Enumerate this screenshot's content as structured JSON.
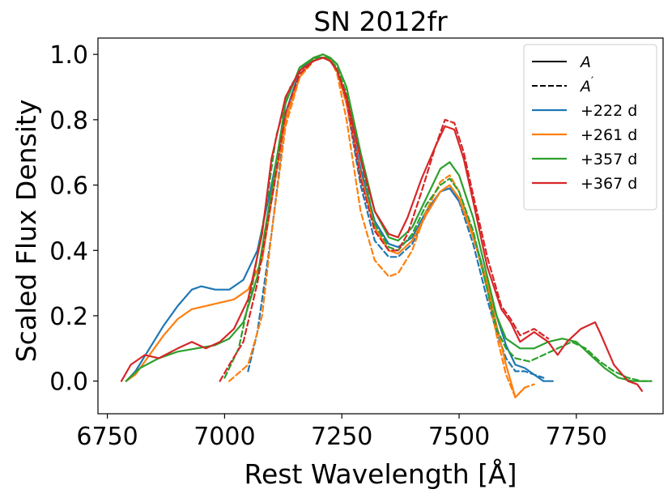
{
  "chart_data": {
    "type": "line",
    "title": "SN 2012fr",
    "xlabel": "Rest Wavelength [Å]",
    "ylabel": "Scaled Flux Density",
    "xlim": [
      6730,
      7935
    ],
    "ylim": [
      -0.1,
      1.05
    ],
    "xticks": [
      6750,
      7000,
      7250,
      7500,
      7750
    ],
    "yticks": [
      0.0,
      0.2,
      0.4,
      0.6,
      0.8,
      1.0
    ],
    "xtick_labels": [
      "6750",
      "7000",
      "7250",
      "7500",
      "7750"
    ],
    "ytick_labels": [
      "0.0",
      "0.2",
      "0.4",
      "0.6",
      "0.8",
      "1.0"
    ],
    "legend_position": "top-right",
    "legend_styles": [
      {
        "label_main": "A",
        "label_sup": "",
        "dash": "solid"
      },
      {
        "label_main": "A",
        "label_sup": "′",
        "dash": "dashed"
      }
    ],
    "series": [
      {
        "name": "+222 d",
        "color": "#1f77b4",
        "style": "solid",
        "x": [
          6790,
          6810,
          6840,
          6870,
          6900,
          6930,
          6950,
          6980,
          7010,
          7040,
          7070,
          7100,
          7130,
          7160,
          7190,
          7210,
          7225,
          7240,
          7260,
          7290,
          7320,
          7350,
          7370,
          7400,
          7430,
          7460,
          7480,
          7500,
          7530,
          7560,
          7580,
          7600,
          7620,
          7640,
          7660,
          7680,
          7700
        ],
        "y": [
          0.0,
          0.03,
          0.1,
          0.17,
          0.23,
          0.28,
          0.29,
          0.28,
          0.28,
          0.31,
          0.4,
          0.6,
          0.82,
          0.95,
          0.99,
          0.99,
          0.99,
          0.95,
          0.85,
          0.65,
          0.49,
          0.42,
          0.41,
          0.44,
          0.52,
          0.58,
          0.59,
          0.55,
          0.45,
          0.3,
          0.2,
          0.11,
          0.05,
          0.04,
          0.02,
          0.0,
          0.0
        ]
      },
      {
        "name": "+222 d",
        "color": "#1f77b4",
        "style": "dashed",
        "x": [
          7050,
          7070,
          7100,
          7130,
          7160,
          7190,
          7210,
          7225,
          7240,
          7260,
          7290,
          7320,
          7350,
          7370,
          7400,
          7430,
          7460,
          7480,
          7500,
          7530,
          7560,
          7580,
          7600,
          7620,
          7640,
          7660,
          7680
        ],
        "y": [
          0.03,
          0.15,
          0.45,
          0.8,
          0.93,
          0.99,
          0.99,
          0.99,
          0.95,
          0.85,
          0.6,
          0.43,
          0.38,
          0.38,
          0.42,
          0.51,
          0.58,
          0.6,
          0.55,
          0.42,
          0.25,
          0.15,
          0.07,
          0.03,
          0.03,
          0.02,
          0.01
        ]
      },
      {
        "name": "+261 d",
        "color": "#ff7f0e",
        "style": "solid",
        "x": [
          6790,
          6810,
          6840,
          6870,
          6900,
          6930,
          6960,
          6990,
          7020,
          7050,
          7080,
          7100,
          7130,
          7160,
          7190,
          7210,
          7225,
          7240,
          7260,
          7290,
          7320,
          7350,
          7370,
          7400,
          7430,
          7460,
          7480,
          7500,
          7530,
          7560,
          7580,
          7600,
          7620,
          7640
        ],
        "y": [
          0.0,
          0.02,
          0.08,
          0.14,
          0.19,
          0.22,
          0.23,
          0.24,
          0.25,
          0.28,
          0.37,
          0.55,
          0.8,
          0.93,
          0.99,
          1.0,
          0.99,
          0.95,
          0.85,
          0.63,
          0.47,
          0.4,
          0.39,
          0.43,
          0.51,
          0.58,
          0.6,
          0.56,
          0.44,
          0.3,
          0.17,
          0.05,
          -0.05,
          -0.02
        ]
      },
      {
        "name": "+261 d",
        "color": "#ff7f0e",
        "style": "dashed",
        "x": [
          7010,
          7050,
          7080,
          7100,
          7130,
          7160,
          7190,
          7210,
          7225,
          7240,
          7260,
          7290,
          7320,
          7350,
          7370,
          7400,
          7430,
          7460,
          7480,
          7500,
          7530,
          7560,
          7580,
          7600,
          7620,
          7640,
          7660
        ],
        "y": [
          0.0,
          0.05,
          0.2,
          0.45,
          0.78,
          0.93,
          0.98,
          0.99,
          0.99,
          0.94,
          0.8,
          0.52,
          0.37,
          0.32,
          0.33,
          0.4,
          0.52,
          0.61,
          0.63,
          0.58,
          0.45,
          0.28,
          0.14,
          0.02,
          -0.05,
          -0.02,
          -0.01
        ]
      },
      {
        "name": "+357 d",
        "color": "#2ca02c",
        "style": "solid",
        "x": [
          6790,
          6820,
          6860,
          6900,
          6940,
          6980,
          7010,
          7040,
          7070,
          7100,
          7130,
          7160,
          7190,
          7210,
          7225,
          7240,
          7260,
          7290,
          7320,
          7350,
          7370,
          7400,
          7430,
          7460,
          7480,
          7500,
          7530,
          7560,
          7580,
          7600,
          7630,
          7660,
          7690,
          7720,
          7750,
          7780,
          7810,
          7840,
          7870,
          7890,
          7910
        ],
        "y": [
          0.0,
          0.04,
          0.07,
          0.09,
          0.1,
          0.11,
          0.13,
          0.18,
          0.32,
          0.58,
          0.85,
          0.96,
          0.99,
          1.0,
          0.99,
          0.97,
          0.9,
          0.7,
          0.52,
          0.44,
          0.43,
          0.47,
          0.56,
          0.65,
          0.67,
          0.63,
          0.5,
          0.32,
          0.2,
          0.13,
          0.1,
          0.1,
          0.12,
          0.13,
          0.12,
          0.08,
          0.04,
          0.01,
          0.0,
          0.0,
          0.0
        ]
      },
      {
        "name": "+357 d",
        "color": "#2ca02c",
        "style": "dashed",
        "x": [
          7000,
          7030,
          7060,
          7090,
          7110,
          7140,
          7170,
          7200,
          7220,
          7240,
          7260,
          7290,
          7320,
          7350,
          7370,
          7400,
          7430,
          7460,
          7480,
          7500,
          7530,
          7560,
          7580,
          7600,
          7620,
          7650,
          7680,
          7710,
          7740,
          7770,
          7800,
          7830,
          7860,
          7890,
          7910
        ],
        "y": [
          0.01,
          0.1,
          0.3,
          0.55,
          0.75,
          0.9,
          0.97,
          0.99,
          0.99,
          0.96,
          0.88,
          0.68,
          0.48,
          0.41,
          0.4,
          0.45,
          0.54,
          0.6,
          0.62,
          0.58,
          0.46,
          0.28,
          0.16,
          0.1,
          0.07,
          0.06,
          0.08,
          0.1,
          0.12,
          0.1,
          0.06,
          0.03,
          0.01,
          0.0,
          0.0
        ]
      },
      {
        "name": "+367 d",
        "color": "#d62728",
        "style": "solid",
        "x": [
          6780,
          6800,
          6830,
          6860,
          6900,
          6930,
          6960,
          6990,
          7020,
          7050,
          7080,
          7100,
          7130,
          7160,
          7190,
          7210,
          7225,
          7240,
          7260,
          7290,
          7320,
          7350,
          7370,
          7390,
          7420,
          7450,
          7470,
          7490,
          7510,
          7530,
          7560,
          7590,
          7610,
          7630,
          7660,
          7690,
          7710,
          7730,
          7760,
          7790,
          7800,
          7830,
          7860,
          7880,
          7890
        ],
        "y": [
          0.0,
          0.05,
          0.08,
          0.07,
          0.1,
          0.12,
          0.1,
          0.12,
          0.16,
          0.25,
          0.45,
          0.68,
          0.87,
          0.95,
          0.98,
          0.99,
          0.98,
          0.95,
          0.87,
          0.68,
          0.52,
          0.45,
          0.44,
          0.5,
          0.62,
          0.72,
          0.78,
          0.77,
          0.68,
          0.55,
          0.35,
          0.22,
          0.18,
          0.12,
          0.15,
          0.12,
          0.08,
          0.12,
          0.16,
          0.18,
          0.15,
          0.05,
          0.0,
          -0.01,
          -0.03
        ]
      },
      {
        "name": "+367 d",
        "color": "#d62728",
        "style": "dashed",
        "x": [
          6990,
          7010,
          7040,
          7070,
          7100,
          7130,
          7160,
          7190,
          7210,
          7225,
          7240,
          7260,
          7290,
          7320,
          7350,
          7370,
          7390,
          7420,
          7450,
          7470,
          7490,
          7510,
          7530,
          7560,
          7590,
          7610,
          7630,
          7660,
          7690
        ],
        "y": [
          0.0,
          0.05,
          0.12,
          0.3,
          0.55,
          0.82,
          0.94,
          0.98,
          0.99,
          0.98,
          0.95,
          0.86,
          0.62,
          0.46,
          0.4,
          0.4,
          0.45,
          0.58,
          0.72,
          0.8,
          0.79,
          0.7,
          0.57,
          0.38,
          0.23,
          0.19,
          0.14,
          0.16,
          0.13
        ]
      }
    ],
    "legend_series": [
      {
        "label": "+222 d",
        "color": "#1f77b4"
      },
      {
        "label": "+261 d",
        "color": "#ff7f0e"
      },
      {
        "label": "+357 d",
        "color": "#2ca02c"
      },
      {
        "label": "+367 d",
        "color": "#d62728"
      }
    ]
  }
}
